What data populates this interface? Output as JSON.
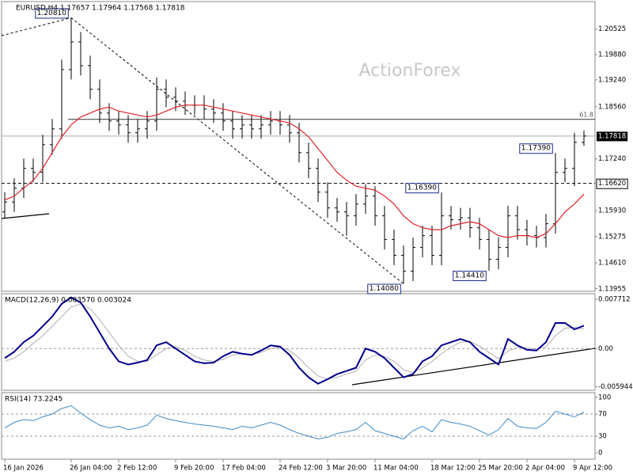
{
  "chart_data": [
    {
      "type": "ohlc",
      "title": "EURUSD,H4  1.17657 1.17964 1.17568 1.17818",
      "watermark": "ActionForex",
      "color": "#000000",
      "categories": [
        "16 Jan 2026",
        null,
        null,
        null,
        null,
        null,
        null,
        "26 Jan 04:00",
        null,
        null,
        null,
        null,
        "2 Feb 12:00",
        null,
        null,
        null,
        null,
        null,
        "9 Feb 20:00",
        null,
        null,
        null,
        null,
        "17 Feb 04:00",
        null,
        null,
        null,
        null,
        null,
        "24 Feb 12:00",
        null,
        null,
        null,
        null,
        "3 Mar 20:00",
        null,
        null,
        null,
        null,
        "11 Mar 04:00",
        null,
        null,
        null,
        null,
        null,
        "18 Mar 12:00",
        null,
        null,
        null,
        null,
        "25 Mar 20:00",
        null,
        null,
        null,
        null,
        "2 Apr 04:00",
        null,
        null,
        null,
        null,
        "9 Apr 12:00",
        null
      ],
      "open": [
        1.159,
        1.1615,
        1.165,
        1.17,
        1.169,
        1.176,
        1.18,
        1.195,
        1.202,
        1.196,
        1.19,
        1.184,
        1.182,
        1.181,
        1.179,
        1.18,
        1.182,
        1.19,
        1.188,
        1.187,
        1.186,
        1.186,
        1.185,
        1.184,
        1.182,
        1.18,
        1.181,
        1.18,
        1.181,
        1.182,
        1.181,
        1.179,
        1.174,
        1.17,
        1.164,
        1.16,
        1.159,
        1.158,
        1.161,
        1.163,
        1.158,
        1.152,
        1.148,
        1.144,
        1.15,
        1.153,
        1.148,
        1.158,
        1.157,
        1.1575,
        1.155,
        1.152,
        1.147,
        1.15,
        1.158,
        1.1545,
        1.153,
        1.1525,
        1.156,
        1.169,
        1.17,
        1.17657
      ],
      "high": [
        1.164,
        1.1675,
        1.1725,
        1.1725,
        1.1785,
        1.1825,
        1.1975,
        1.2081,
        1.2045,
        1.1985,
        1.1925,
        1.1865,
        1.1845,
        1.1835,
        1.1825,
        1.1845,
        1.193,
        1.1925,
        1.1905,
        1.1895,
        1.1885,
        1.1885,
        1.1875,
        1.1865,
        1.1845,
        1.1835,
        1.1835,
        1.1835,
        1.1845,
        1.1845,
        1.1835,
        1.1815,
        1.1765,
        1.1725,
        1.1665,
        1.1625,
        1.1615,
        1.1635,
        1.166,
        1.1655,
        1.1605,
        1.1545,
        1.1505,
        1.1525,
        1.1555,
        1.1555,
        1.1639,
        1.1605,
        1.16,
        1.16,
        1.1575,
        1.1545,
        1.1525,
        1.1605,
        1.1605,
        1.157,
        1.1555,
        1.1585,
        1.1739,
        1.1725,
        1.179,
        1.17964
      ],
      "low": [
        1.1575,
        1.159,
        1.1625,
        1.1665,
        1.1665,
        1.1735,
        1.1775,
        1.1925,
        1.1935,
        1.1875,
        1.1815,
        1.1795,
        1.1785,
        1.1765,
        1.1765,
        1.1775,
        1.1795,
        1.1855,
        1.1845,
        1.1835,
        1.1835,
        1.1825,
        1.1815,
        1.1795,
        1.1775,
        1.1775,
        1.1775,
        1.1775,
        1.1785,
        1.1785,
        1.1765,
        1.1715,
        1.1675,
        1.1615,
        1.1575,
        1.1565,
        1.153,
        1.1555,
        1.1585,
        1.1555,
        1.1495,
        1.1455,
        1.1408,
        1.1415,
        1.1475,
        1.1455,
        1.1455,
        1.1545,
        1.1545,
        1.1525,
        1.1495,
        1.1441,
        1.1445,
        1.1475,
        1.152,
        1.1505,
        1.15,
        1.15,
        1.1535,
        1.1665,
        1.1655,
        1.17568
      ],
      "close": [
        1.1615,
        1.165,
        1.17,
        1.169,
        1.176,
        1.18,
        1.195,
        1.202,
        1.196,
        1.19,
        1.184,
        1.182,
        1.181,
        1.179,
        1.18,
        1.182,
        1.19,
        1.188,
        1.187,
        1.186,
        1.186,
        1.185,
        1.184,
        1.182,
        1.18,
        1.181,
        1.18,
        1.181,
        1.182,
        1.181,
        1.179,
        1.174,
        1.17,
        1.164,
        1.16,
        1.159,
        1.158,
        1.161,
        1.163,
        1.158,
        1.152,
        1.148,
        1.144,
        1.15,
        1.153,
        1.148,
        1.158,
        1.157,
        1.1575,
        1.155,
        1.152,
        1.147,
        1.15,
        1.158,
        1.1545,
        1.153,
        1.1525,
        1.156,
        1.169,
        1.17,
        1.1766,
        1.17818
      ],
      "overlays": [
        {
          "color": "#e0202a",
          "values": [
            1.162,
            1.163,
            1.165,
            1.167,
            1.17,
            1.174,
            1.178,
            1.181,
            1.183,
            1.184,
            1.185,
            1.1855,
            1.1845,
            1.184,
            1.1835,
            1.183,
            1.1835,
            1.1845,
            1.1855,
            1.186,
            1.186,
            1.186,
            1.1855,
            1.185,
            1.1845,
            1.184,
            1.1835,
            1.183,
            1.1825,
            1.182,
            1.1815,
            1.18,
            1.178,
            1.175,
            1.172,
            1.169,
            1.167,
            1.1655,
            1.165,
            1.1645,
            1.163,
            1.161,
            1.158,
            1.156,
            1.155,
            1.1545,
            1.1545,
            1.1555,
            1.156,
            1.1565,
            1.156,
            1.1545,
            1.153,
            1.1525,
            1.153,
            1.153,
            1.1525,
            1.1535,
            1.156,
            1.159,
            1.161,
            1.1635
          ]
        }
      ],
      "price_labels": [
        {
          "label": "1.20810",
          "value": 1.2081
        },
        {
          "label": "1.14080",
          "value": 1.1408
        },
        {
          "label": "1.16390",
          "value": 1.1639
        },
        {
          "label": "1.14410",
          "value": 1.1441
        },
        {
          "label": "1.17390",
          "value": 1.1739
        }
      ],
      "levels": [
        {
          "label": "61.8",
          "value": 1.1824
        }
      ],
      "support": {
        "label": "1.16620",
        "value": 1.1662
      },
      "current": 1.17818,
      "ylim": [
        1.1389,
        1.2122
      ],
      "yticks": [
        1.20525,
        {
          "value": 1.1988,
          "label": "1.19880"
        },
        {
          "value": 1.1924,
          "label": "1.19240"
        },
        {
          "value": 1.1856,
          "label": "1.18560"
        },
        {
          "value": 1.1724,
          "label": "1.17240"
        },
        {
          "value": 1.1593,
          "label": "1.15930"
        },
        1.15275,
        {
          "value": 1.1461,
          "label": "1.14610"
        },
        1.13955
      ],
      "grid": false
    },
    {
      "type": "line",
      "title": "MACD(12,26,9) 0.003570 0.003024",
      "series": [
        {
          "color": "#00008b",
          "width": 2,
          "values": [
            -0.0015,
            -0.0005,
            0.001,
            0.002,
            0.0035,
            0.005,
            0.007,
            0.008,
            0.0072,
            0.005,
            0.0025,
            0.0,
            -0.002,
            -0.0025,
            -0.0022,
            -0.0018,
            0.0005,
            0.001,
            0.0,
            -0.001,
            -0.002,
            -0.0023,
            -0.0022,
            -0.0012,
            -0.0005,
            -0.0008,
            -0.001,
            -0.0003,
            0.0005,
            0.0003,
            -0.001,
            -0.003,
            -0.0045,
            -0.0055,
            -0.0048,
            -0.004,
            -0.0035,
            -0.003,
            0.0,
            -0.0005,
            -0.0015,
            -0.003,
            -0.0045,
            -0.004,
            -0.002,
            -0.0012,
            0.0005,
            0.001,
            0.0015,
            0.001,
            -0.0005,
            -0.0015,
            -0.0025,
            0.0015,
            0.0005,
            -0.0002,
            -0.0003,
            0.001,
            0.004,
            0.004,
            0.003,
            0.00357
          ]
        },
        {
          "color": "#b0b0b0",
          "width": 1,
          "values": [
            -0.002,
            -0.0015,
            -0.0005,
            0.0008,
            0.002,
            0.0035,
            0.005,
            0.0065,
            0.007,
            0.0062,
            0.0045,
            0.0025,
            0.0005,
            -0.0012,
            -0.002,
            -0.002,
            -0.001,
            0.0,
            0.0003,
            -0.0003,
            -0.0012,
            -0.0018,
            -0.002,
            -0.0017,
            -0.001,
            -0.0008,
            -0.0009,
            -0.0006,
            0.0,
            0.0002,
            -0.0003,
            -0.0015,
            -0.003,
            -0.0043,
            -0.0048,
            -0.0045,
            -0.004,
            -0.0035,
            -0.0018,
            -0.001,
            -0.0012,
            -0.002,
            -0.0033,
            -0.0038,
            -0.003,
            -0.002,
            -0.0008,
            0.0002,
            0.001,
            0.0011,
            0.0004,
            -0.0006,
            -0.0016,
            -0.0004,
            0.0002,
            0.0001,
            -0.0001,
            0.0003,
            0.002,
            0.0032,
            0.0033,
            0.003024
          ]
        }
      ],
      "ylim": [
        -0.00653,
        0.00858
      ],
      "yticks": [
        0.007712,
        {
          "value": 0,
          "label": "0.00"
        },
        -0.005944
      ],
      "grid": "dashed"
    },
    {
      "type": "line",
      "title": "RSI(14) 73.2245",
      "series": [
        {
          "color": "#3d8bc9",
          "width": 1,
          "values": [
            45,
            55,
            60,
            58,
            65,
            70,
            80,
            85,
            72,
            60,
            50,
            45,
            48,
            42,
            45,
            50,
            68,
            62,
            58,
            55,
            52,
            50,
            48,
            45,
            42,
            48,
            45,
            50,
            55,
            50,
            42,
            35,
            30,
            25,
            28,
            35,
            38,
            42,
            55,
            40,
            35,
            30,
            25,
            40,
            48,
            38,
            60,
            55,
            52,
            48,
            40,
            32,
            42,
            62,
            48,
            45,
            44,
            55,
            75,
            70,
            65,
            73.2245
          ]
        }
      ],
      "ylim": [
        -11.4,
        108.6
      ],
      "yticks": [
        100,
        70,
        30,
        0
      ],
      "grid": "dashed"
    }
  ]
}
